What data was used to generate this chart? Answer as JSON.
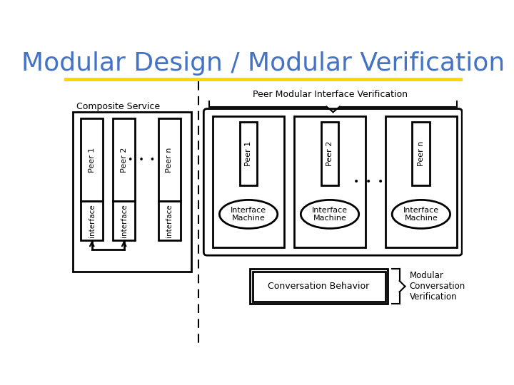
{
  "title": "Modular Design / Modular Verification",
  "title_color": "#4472C4",
  "title_fontsize": 26,
  "background_color": "#FFFFFF",
  "header_bar_color": "#FFD700",
  "composite_service_label": "Composite Service",
  "peer_modular_label": "Peer Modular Interface Verification",
  "interface_machine_label": "Interface\nMachine",
  "conversation_behavior_label": "Conversation Behavior",
  "modular_conv_label": "Modular\nConversation\nVerification",
  "dots": "•  •  •"
}
